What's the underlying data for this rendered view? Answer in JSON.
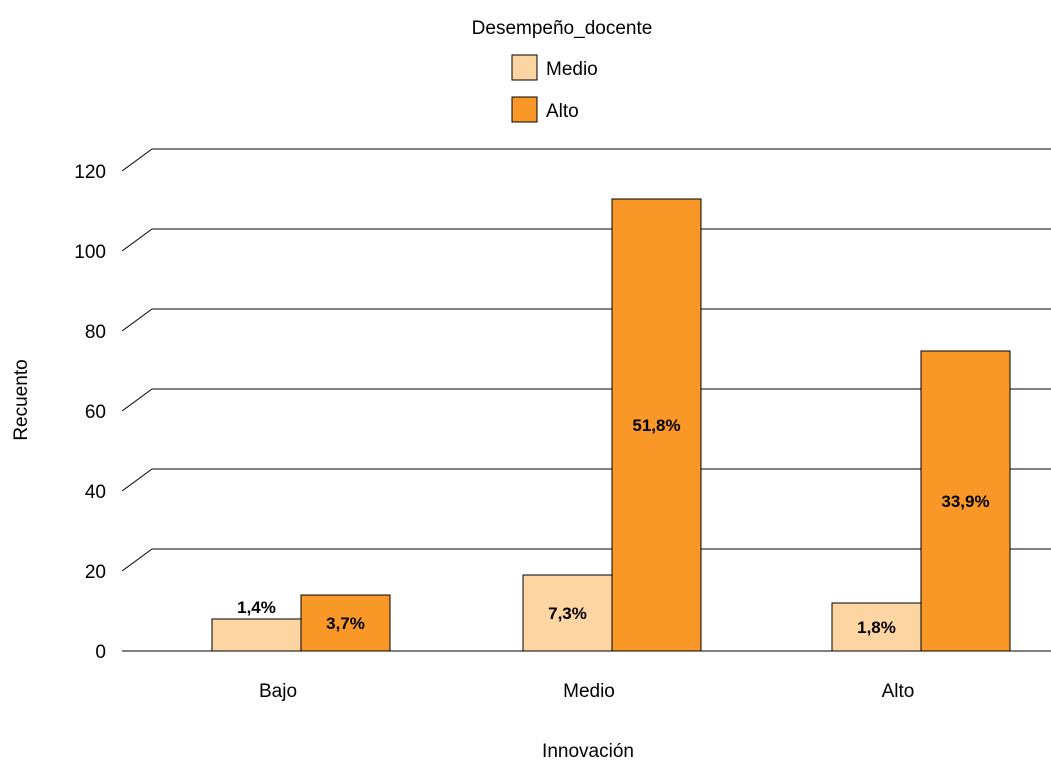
{
  "chart_data": {
    "type": "bar",
    "title": "",
    "xlabel": "Innovación",
    "ylabel": "Recuento",
    "categories": [
      "Bajo",
      "Medio",
      "Alto"
    ],
    "ylim": [
      0,
      120
    ],
    "yticks": [
      0,
      20,
      40,
      60,
      80,
      100,
      120
    ],
    "legend": {
      "title": "Desempeño_docente",
      "placement": "top-center"
    },
    "grid": true,
    "series": [
      {
        "name": "Medio",
        "color": "#FDD5A2",
        "values": [
          8,
          19,
          12
        ],
        "labels": [
          "1,4%",
          "7,3%",
          "1,8%"
        ]
      },
      {
        "name": "Alto",
        "color": "#FA9827",
        "values": [
          14,
          113,
          75
        ],
        "labels": [
          "3,7%",
          "51,8%",
          "33,9%"
        ]
      }
    ]
  }
}
